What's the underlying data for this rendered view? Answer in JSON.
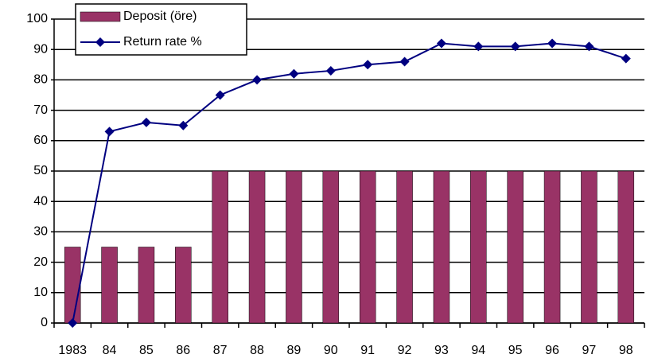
{
  "chart_data": {
    "type": "bar",
    "categories": [
      "1983",
      "84",
      "85",
      "86",
      "87",
      "88",
      "89",
      "90",
      "91",
      "92",
      "93",
      "94",
      "95",
      "96",
      "97",
      "98"
    ],
    "series": [
      {
        "name": "Deposit (öre)",
        "type": "bar",
        "color": "#993366",
        "values": [
          25,
          25,
          25,
          25,
          50,
          50,
          50,
          50,
          50,
          50,
          50,
          50,
          50,
          50,
          50,
          50
        ]
      },
      {
        "name": "Return rate %",
        "type": "line",
        "color": "#000080",
        "values": [
          0,
          63,
          66,
          65,
          75,
          80,
          82,
          83,
          85,
          86,
          92,
          91,
          91,
          92,
          91,
          87
        ]
      }
    ],
    "ylim": [
      0,
      100
    ],
    "yticks": [
      0,
      10,
      20,
      30,
      40,
      50,
      60,
      70,
      80,
      90,
      100
    ],
    "grid": true,
    "legend": "top-left"
  }
}
